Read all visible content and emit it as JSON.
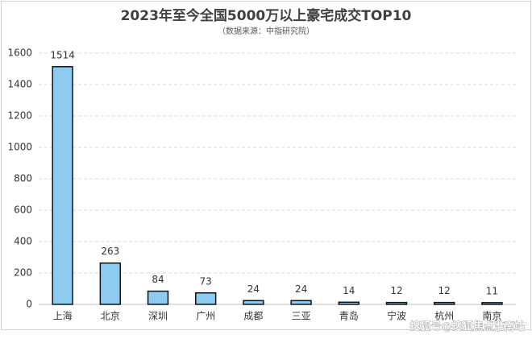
{
  "chart_data": {
    "type": "bar",
    "title": "2023年至今全国5000万以上豪宅成交TOP10",
    "subtitle": "（数据来源：中指研究院）",
    "categories": [
      "上海",
      "北京",
      "深圳",
      "广州",
      "成都",
      "三亚",
      "青岛",
      "宁波",
      "杭州",
      "南京"
    ],
    "values": [
      1514,
      263,
      84,
      73,
      24,
      24,
      14,
      12,
      12,
      11
    ],
    "color": "#8ecbf0",
    "ylim": [
      0,
      1600
    ],
    "yticks": [
      0,
      200,
      400,
      600,
      800,
      1000,
      1200,
      1400,
      1600
    ],
    "grid": true,
    "watermark": "搜狐号@搜狐焦点淮南站"
  }
}
